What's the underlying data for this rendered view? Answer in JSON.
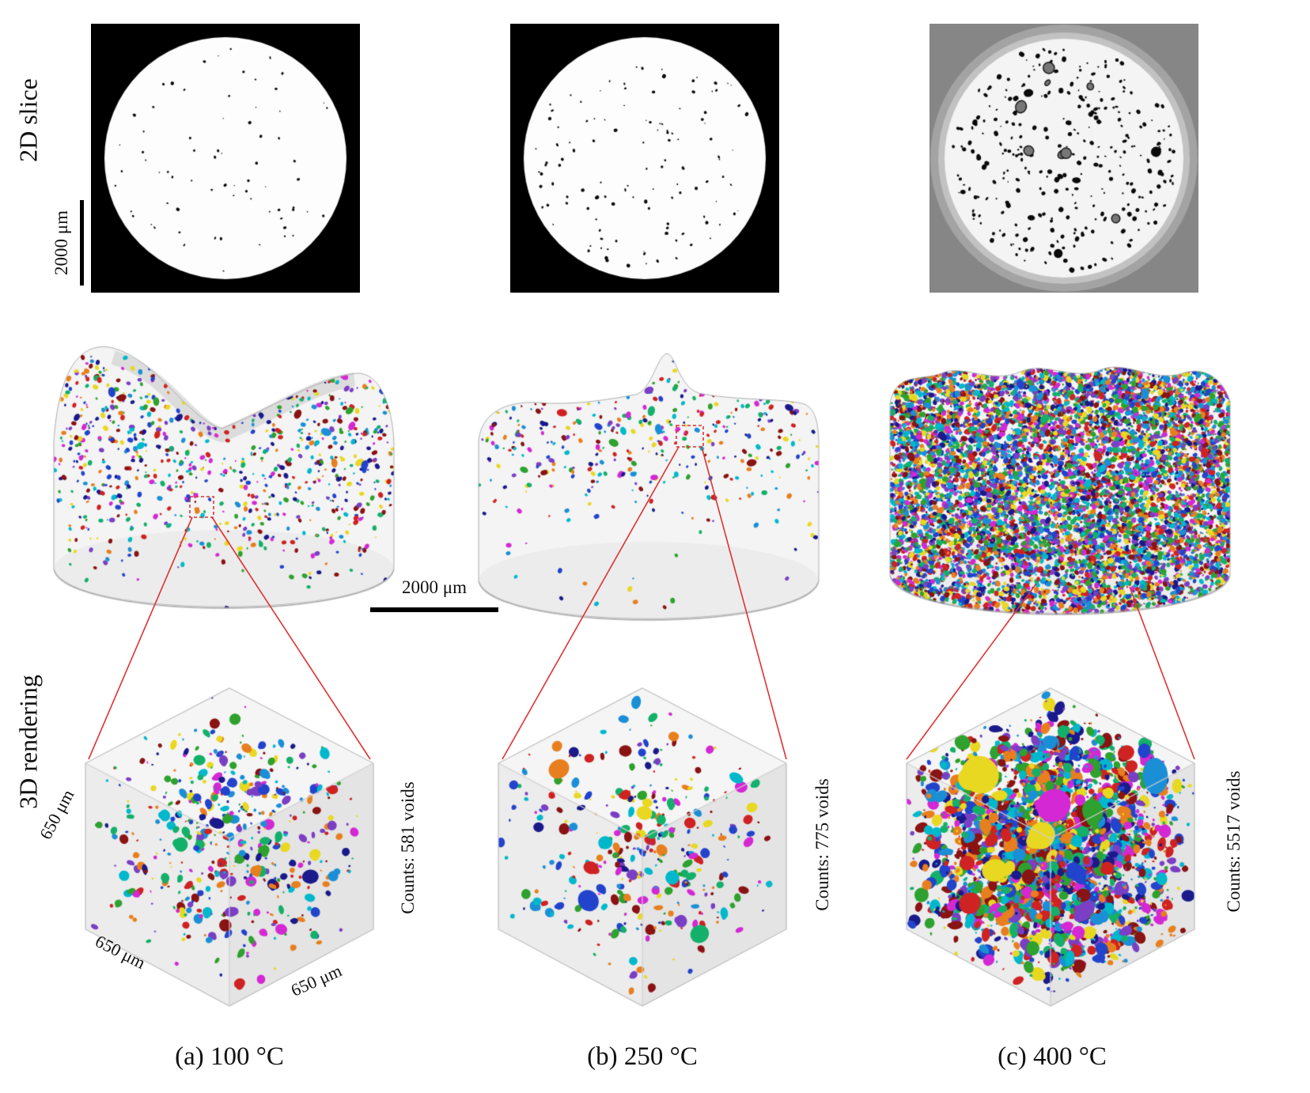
{
  "figure": {
    "row_labels": {
      "slice": "2D slice",
      "rendering": "3D rendering"
    },
    "scale_bars": {
      "slice": "2000 μm",
      "rendering": "2000 μm"
    },
    "cube_dimensions": {
      "left": "650 μm",
      "bottom_left": "650 μm",
      "bottom_right": "650 μm"
    },
    "columns": [
      {
        "id": "a",
        "caption": "(a) 100 °C",
        "counts_label": "Counts: 581 voids",
        "voids": 581
      },
      {
        "id": "b",
        "caption": "(b) 250 °C",
        "counts_label": "Counts: 775 voids",
        "voids": 775
      },
      {
        "id": "c",
        "caption": "(c) 400 °C",
        "counts_label": "Counts: 5517 voids",
        "voids": 5517
      }
    ],
    "palette": [
      "#cf2222",
      "#2ea12e",
      "#2244cc",
      "#00b8cc",
      "#d428d4",
      "#e8d821",
      "#e87f1e",
      "#7a3fc4",
      "#1b8fd6",
      "#13b06a",
      "#8a1313",
      "#1a1a8c"
    ],
    "annotation_color": "#e03131"
  }
}
